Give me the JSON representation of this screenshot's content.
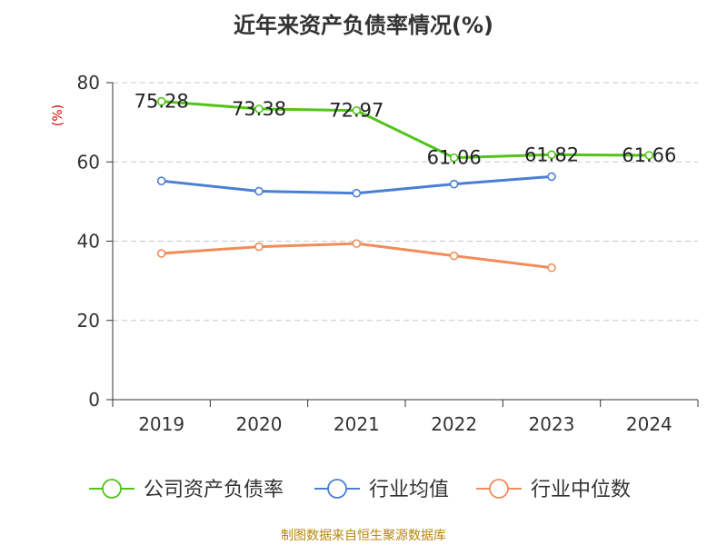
{
  "title": "近年来资产负债率情况(%)",
  "source": "制图数据来自恒生聚源数据库",
  "chart_data": {
    "type": "line",
    "title": "近年来资产负债率情况(%)",
    "ylabel": "(%)",
    "xlabel": "",
    "categories": [
      "2019",
      "2020",
      "2021",
      "2022",
      "2023",
      "2024"
    ],
    "ylim": [
      0,
      80
    ],
    "yticks": [
      0,
      20,
      40,
      60,
      80
    ],
    "grid": true,
    "legend_position": "bottom",
    "series": [
      {
        "name": "公司资产负债率",
        "color": "#52c41a",
        "values": [
          75.28,
          73.38,
          72.97,
          61.06,
          61.82,
          61.66
        ],
        "labels": [
          "75.28",
          "73.38",
          "72.97",
          "61.06",
          "61.82",
          "61.66"
        ]
      },
      {
        "name": "行业均值",
        "color": "#4a7fd4",
        "values": [
          55.2,
          52.6,
          52.1,
          54.4,
          56.3,
          null
        ]
      },
      {
        "name": "行业中位数",
        "color": "#f28c5a",
        "values": [
          36.9,
          38.6,
          39.4,
          36.3,
          33.3,
          null
        ]
      }
    ]
  }
}
